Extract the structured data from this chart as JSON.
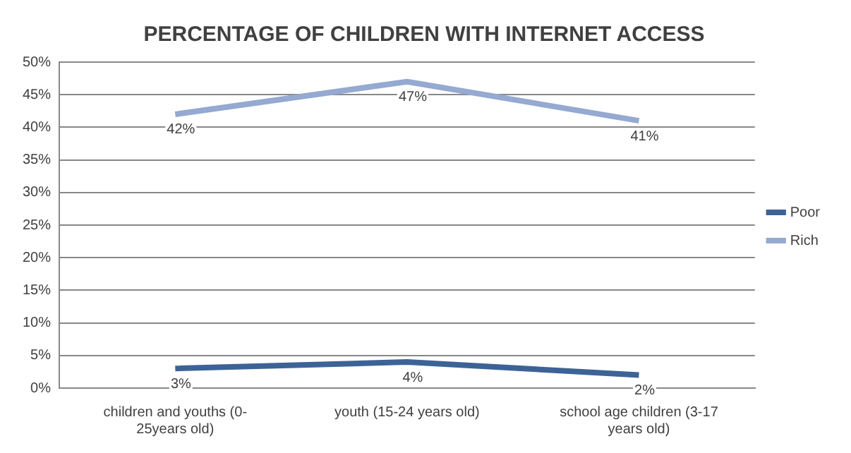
{
  "chart_data": {
    "type": "line",
    "title": "PERCENTAGE OF CHILDREN WITH INTERNET ACCESS",
    "categories": [
      "children and youths (0-25years old)",
      "youth (15-24 years old)",
      "school age children (3-17 years old)"
    ],
    "series": [
      {
        "name": "Poor",
        "color": "#3d6396",
        "values": [
          3,
          4,
          2
        ],
        "value_labels": [
          "3%",
          "4%",
          "2%"
        ]
      },
      {
        "name": "Rich",
        "color": "#95a9d1",
        "values": [
          42,
          47,
          41
        ],
        "value_labels": [
          "42%",
          "47%",
          "41%"
        ]
      }
    ],
    "ylim": [
      0,
      50
    ],
    "yticks": [
      {
        "value": 0,
        "label": "0%"
      },
      {
        "value": 5,
        "label": "5%"
      },
      {
        "value": 10,
        "label": "10%"
      },
      {
        "value": 15,
        "label": "15%"
      },
      {
        "value": 20,
        "label": "20%"
      },
      {
        "value": 25,
        "label": "25%"
      },
      {
        "value": 30,
        "label": "30%"
      },
      {
        "value": 35,
        "label": "35%"
      },
      {
        "value": 40,
        "label": "40%"
      },
      {
        "value": 45,
        "label": "45%"
      },
      {
        "value": 50,
        "label": "50%"
      }
    ],
    "grid": "y",
    "legend": "right",
    "marker": "none",
    "line_style": "solid"
  }
}
